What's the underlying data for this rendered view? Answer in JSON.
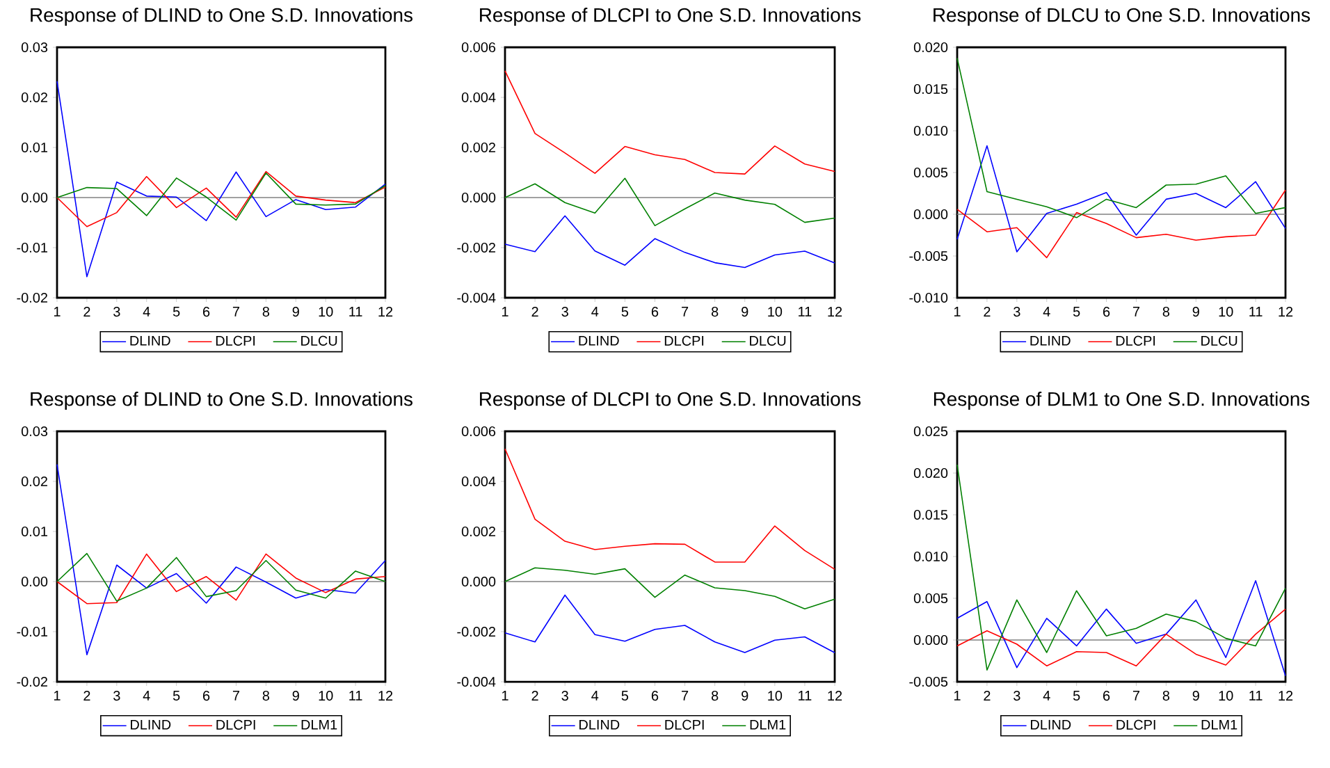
{
  "chart_data": [
    {
      "type": "line",
      "title": "Response of DLIND to One S.D. Innovations",
      "x": [
        1,
        2,
        3,
        4,
        5,
        6,
        7,
        8,
        9,
        10,
        11,
        12
      ],
      "xlim": [
        1,
        12
      ],
      "xticks": [
        1,
        2,
        3,
        4,
        5,
        6,
        7,
        8,
        9,
        10,
        11,
        12
      ],
      "ylim": [
        -0.02,
        0.03
      ],
      "yticks": [
        {
          "value": -0.02,
          "label": "-0.02"
        },
        {
          "value": -0.01,
          "label": "-0.01"
        },
        {
          "value": 0,
          "label": "0.00"
        },
        {
          "value": 0.01,
          "label": "0.01"
        },
        {
          "value": 0.02,
          "label": "0.02"
        },
        {
          "value": 0.03,
          "label": "0.03"
        }
      ],
      "legend": "bottom",
      "ref_lines": [
        {
          "axis": "y",
          "value": 0,
          "color": "#808080"
        }
      ],
      "series": [
        {
          "name": "DLIND",
          "color": "#0000ff",
          "values": [
            0.0232,
            -0.0158,
            0.0031,
            0.0003,
            0.0001,
            -0.0046,
            0.0051,
            -0.0038,
            -0.0004,
            -0.0024,
            -0.0019,
            0.0027
          ]
        },
        {
          "name": "DLCPI",
          "color": "#ff0000",
          "values": [
            0,
            -0.0058,
            -0.003,
            0.0042,
            -0.002,
            0.0019,
            -0.0039,
            0.0052,
            0.0003,
            -0.0005,
            -0.001,
            0.0021
          ]
        },
        {
          "name": "DLCU",
          "color": "#008000",
          "values": [
            0,
            0.002,
            0.0018,
            -0.0036,
            0.0039,
            0.0001,
            -0.0045,
            0.0049,
            -0.0013,
            -0.0015,
            -0.0013,
            0.0024
          ]
        }
      ]
    },
    {
      "type": "line",
      "title": "Response of DLCPI to One S.D. Innovations",
      "x": [
        1,
        2,
        3,
        4,
        5,
        6,
        7,
        8,
        9,
        10,
        11,
        12
      ],
      "xlim": [
        1,
        12
      ],
      "xticks": [
        1,
        2,
        3,
        4,
        5,
        6,
        7,
        8,
        9,
        10,
        11,
        12
      ],
      "ylim": [
        -0.004,
        0.006
      ],
      "yticks": [
        {
          "value": -0.004,
          "label": "-0.004"
        },
        {
          "value": -0.002,
          "label": "-0.002"
        },
        {
          "value": 0,
          "label": "0.000"
        },
        {
          "value": 0.002,
          "label": "0.002"
        },
        {
          "value": 0.004,
          "label": "0.004"
        },
        {
          "value": 0.006,
          "label": "0.006"
        }
      ],
      "legend": "bottom",
      "ref_lines": [
        {
          "axis": "y",
          "value": 0,
          "color": "#808080"
        }
      ],
      "series": [
        {
          "name": "DLIND",
          "color": "#0000ff",
          "values": [
            -0.00186,
            -0.00216,
            -0.00073,
            -0.00213,
            -0.0027,
            -0.00164,
            -0.00219,
            -0.0026,
            -0.00279,
            -0.00229,
            -0.00214,
            -0.00261
          ]
        },
        {
          "name": "DLCPI",
          "color": "#ff0000",
          "values": [
            0.00506,
            0.00256,
            0.00178,
            0.00097,
            0.00204,
            0.00171,
            0.00152,
            0.001,
            0.00094,
            0.00206,
            0.00134,
            0.00104
          ]
        },
        {
          "name": "DLCU",
          "color": "#008000",
          "values": [
            0,
            0.00055,
            -0.0002,
            -0.00062,
            0.00077,
            -0.00112,
            -0.00045,
            0.00018,
            -0.0001,
            -0.00027,
            -0.00099,
            -0.00082
          ]
        }
      ]
    },
    {
      "type": "line",
      "title": "Response of DLCU to One S.D. Innovations",
      "x": [
        1,
        2,
        3,
        4,
        5,
        6,
        7,
        8,
        9,
        10,
        11,
        12
      ],
      "xlim": [
        1,
        12
      ],
      "xticks": [
        1,
        2,
        3,
        4,
        5,
        6,
        7,
        8,
        9,
        10,
        11,
        12
      ],
      "ylim": [
        -0.01,
        0.02
      ],
      "yticks": [
        {
          "value": -0.01,
          "label": "-0.010"
        },
        {
          "value": -0.005,
          "label": "-0.005"
        },
        {
          "value": 0,
          "label": "0.000"
        },
        {
          "value": 0.005,
          "label": "0.005"
        },
        {
          "value": 0.01,
          "label": "0.010"
        },
        {
          "value": 0.015,
          "label": "0.015"
        },
        {
          "value": 0.02,
          "label": "0.020"
        }
      ],
      "legend": "bottom",
      "ref_lines": [
        {
          "axis": "y",
          "value": 0,
          "color": "#808080"
        }
      ],
      "series": [
        {
          "name": "DLIND",
          "color": "#0000ff",
          "values": [
            -0.003,
            0.0082,
            -0.0045,
            0.0001,
            0.0012,
            0.0026,
            -0.0025,
            0.0018,
            0.0025,
            0.0008,
            0.0039,
            -0.0017
          ]
        },
        {
          "name": "DLCPI",
          "color": "#ff0000",
          "values": [
            0.0006,
            -0.0021,
            -0.0016,
            -0.0052,
            0.0002,
            -0.0011,
            -0.0028,
            -0.0024,
            -0.0031,
            -0.0027,
            -0.0025,
            0.0029
          ]
        },
        {
          "name": "DLCU",
          "color": "#008000",
          "values": [
            0.0187,
            0.0027,
            0.0018,
            0.0009,
            -0.0004,
            0.0018,
            0.0008,
            0.0035,
            0.0036,
            0.0046,
            0.0001,
            0.0008
          ]
        }
      ]
    },
    {
      "type": "line",
      "title": "Response of DLIND to One S.D. Innovations",
      "x": [
        1,
        2,
        3,
        4,
        5,
        6,
        7,
        8,
        9,
        10,
        11,
        12
      ],
      "xlim": [
        1,
        12
      ],
      "xticks": [
        1,
        2,
        3,
        4,
        5,
        6,
        7,
        8,
        9,
        10,
        11,
        12
      ],
      "ylim": [
        -0.02,
        0.03
      ],
      "yticks": [
        {
          "value": -0.02,
          "label": "-0.02"
        },
        {
          "value": -0.01,
          "label": "-0.01"
        },
        {
          "value": 0,
          "label": "0.00"
        },
        {
          "value": 0.01,
          "label": "0.01"
        },
        {
          "value": 0.02,
          "label": "0.02"
        },
        {
          "value": 0.03,
          "label": "0.03"
        }
      ],
      "legend": "bottom",
      "ref_lines": [
        {
          "axis": "y",
          "value": 0,
          "color": "#808080"
        }
      ],
      "series": [
        {
          "name": "DLIND",
          "color": "#0000ff",
          "values": [
            0.0234,
            -0.0146,
            0.0033,
            -0.0013,
            0.0016,
            -0.0043,
            0.0029,
            -0.0001,
            -0.0033,
            -0.0016,
            -0.0023,
            0.0042
          ]
        },
        {
          "name": "DLCPI",
          "color": "#ff0000",
          "values": [
            0,
            -0.0044,
            -0.0042,
            0.0055,
            -0.002,
            0.001,
            -0.0037,
            0.0055,
            0.0007,
            -0.0022,
            0.0005,
            0.001
          ]
        },
        {
          "name": "DLM1",
          "color": "#008000",
          "values": [
            0,
            0.0056,
            -0.0039,
            -0.0013,
            0.0048,
            -0.003,
            -0.0018,
            0.0042,
            -0.0017,
            -0.0033,
            0.0021,
            0
          ]
        }
      ]
    },
    {
      "type": "line",
      "title": "Response of DLCPI to One S.D. Innovations",
      "x": [
        1,
        2,
        3,
        4,
        5,
        6,
        7,
        8,
        9,
        10,
        11,
        12
      ],
      "xlim": [
        1,
        12
      ],
      "xticks": [
        1,
        2,
        3,
        4,
        5,
        6,
        7,
        8,
        9,
        10,
        11,
        12
      ],
      "ylim": [
        -0.004,
        0.006
      ],
      "yticks": [
        {
          "value": -0.004,
          "label": "-0.004"
        },
        {
          "value": -0.002,
          "label": "-0.002"
        },
        {
          "value": 0,
          "label": "0.000"
        },
        {
          "value": 0.002,
          "label": "0.002"
        },
        {
          "value": 0.004,
          "label": "0.004"
        },
        {
          "value": 0.006,
          "label": "0.006"
        }
      ],
      "legend": "bottom",
      "ref_lines": [
        {
          "axis": "y",
          "value": 0,
          "color": "#808080"
        }
      ],
      "series": [
        {
          "name": "DLIND",
          "color": "#0000ff",
          "values": [
            -0.00205,
            -0.00241,
            -0.00054,
            -0.00212,
            -0.00238,
            -0.00191,
            -0.00175,
            -0.00241,
            -0.00283,
            -0.00234,
            -0.00221,
            -0.00284
          ]
        },
        {
          "name": "DLCPI",
          "color": "#ff0000",
          "values": [
            0.0053,
            0.00249,
            0.00161,
            0.00128,
            0.00141,
            0.00151,
            0.00149,
            0.00078,
            0.00078,
            0.00222,
            0.00124,
            0.00049
          ]
        },
        {
          "name": "DLM1",
          "color": "#008000",
          "values": [
            0,
            0.00055,
            0.00045,
            0.00029,
            0.00051,
            -0.00063,
            0.00026,
            -0.00025,
            -0.00036,
            -0.00059,
            -0.00109,
            -0.0007
          ]
        }
      ]
    },
    {
      "type": "line",
      "title": "Response of DLM1 to One S.D. Innovations",
      "x": [
        1,
        2,
        3,
        4,
        5,
        6,
        7,
        8,
        9,
        10,
        11,
        12
      ],
      "xlim": [
        1,
        12
      ],
      "xticks": [
        1,
        2,
        3,
        4,
        5,
        6,
        7,
        8,
        9,
        10,
        11,
        12
      ],
      "ylim": [
        -0.005,
        0.025
      ],
      "yticks": [
        {
          "value": -0.005,
          "label": "-0.005"
        },
        {
          "value": 0,
          "label": "0.000"
        },
        {
          "value": 0.005,
          "label": "0.005"
        },
        {
          "value": 0.01,
          "label": "0.010"
        },
        {
          "value": 0.015,
          "label": "0.015"
        },
        {
          "value": 0.02,
          "label": "0.020"
        },
        {
          "value": 0.025,
          "label": "0.025"
        }
      ],
      "legend": "bottom",
      "ref_lines": [
        {
          "axis": "y",
          "value": 0,
          "color": "#808080"
        }
      ],
      "series": [
        {
          "name": "DLIND",
          "color": "#0000ff",
          "values": [
            0.0026,
            0.0046,
            -0.0033,
            0.0026,
            -0.0007,
            0.0037,
            -0.0004,
            0.0007,
            0.0048,
            -0.0021,
            0.0071,
            -0.0043
          ]
        },
        {
          "name": "DLCPI",
          "color": "#ff0000",
          "values": [
            -0.0007,
            0.0011,
            -0.0005,
            -0.0031,
            -0.0014,
            -0.0015,
            -0.0031,
            0.0007,
            -0.0017,
            -0.003,
            0.0007,
            0.0037
          ]
        },
        {
          "name": "DLM1",
          "color": "#008000",
          "values": [
            0.021,
            -0.0036,
            0.0048,
            -0.0015,
            0.0059,
            0.0005,
            0.0014,
            0.0031,
            0.0022,
            0.0002,
            -0.0007,
            0.0062
          ]
        }
      ]
    }
  ]
}
